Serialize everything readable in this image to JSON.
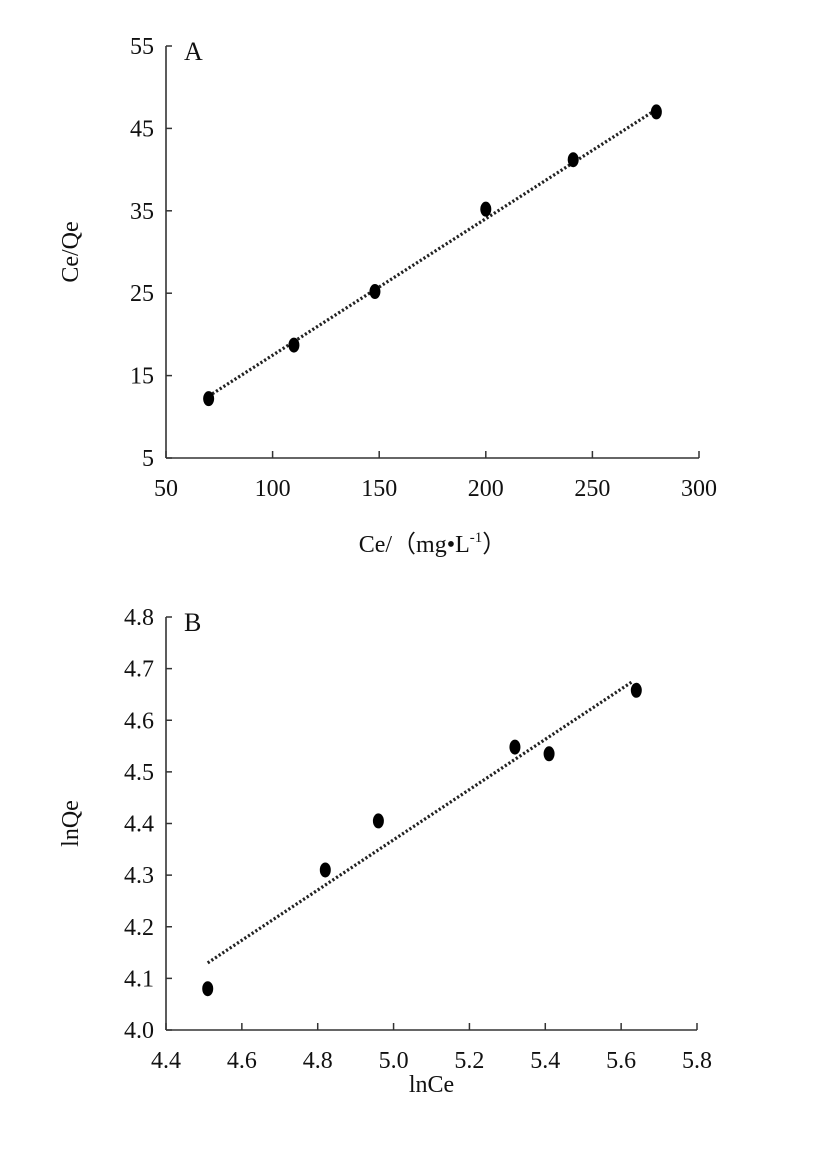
{
  "chart_data": [
    {
      "type": "scatter",
      "panel_label": "A",
      "xlabel": "Ce/（mg•L",
      "xlabel_superscript": "-1",
      "xlabel_suffix": "）",
      "ylabel": "Ce/Qe",
      "xlim": [
        50,
        300
      ],
      "ylim": [
        5,
        55
      ],
      "xticks": [
        50,
        100,
        150,
        200,
        250,
        300
      ],
      "yticks": [
        5,
        15,
        25,
        35,
        45,
        55
      ],
      "grid": false,
      "points": {
        "x": [
          70,
          110,
          148,
          200,
          241,
          280
        ],
        "y": [
          12.2,
          18.7,
          25.2,
          35.2,
          41.2,
          47.0
        ]
      },
      "trendline": {
        "x": [
          70,
          280
        ],
        "y": [
          12.5,
          47.3
        ],
        "style": "dotted"
      },
      "marker_color": "#000000"
    },
    {
      "type": "scatter",
      "panel_label": "B",
      "xlabel": "lnCe",
      "ylabel": "lnQe",
      "xlim": [
        4.4,
        5.8
      ],
      "ylim": [
        4.0,
        4.8
      ],
      "xticks": [
        "4.4",
        "4.6",
        "4.8",
        "5.0",
        "5.2",
        "5.4",
        "5.6",
        "5.8"
      ],
      "yticks": [
        "4.0",
        "4.1",
        "4.2",
        "4.3",
        "4.4",
        "4.5",
        "4.6",
        "4.7",
        "4.8"
      ],
      "grid": false,
      "points": {
        "x": [
          4.51,
          4.82,
          4.96,
          5.32,
          5.41,
          5.64
        ],
        "y": [
          4.08,
          4.31,
          4.405,
          4.548,
          4.535,
          4.658
        ]
      },
      "trendline": {
        "x": [
          4.51,
          5.63
        ],
        "y": [
          4.13,
          4.675
        ],
        "style": "dotted"
      },
      "marker_color": "#000000"
    }
  ]
}
